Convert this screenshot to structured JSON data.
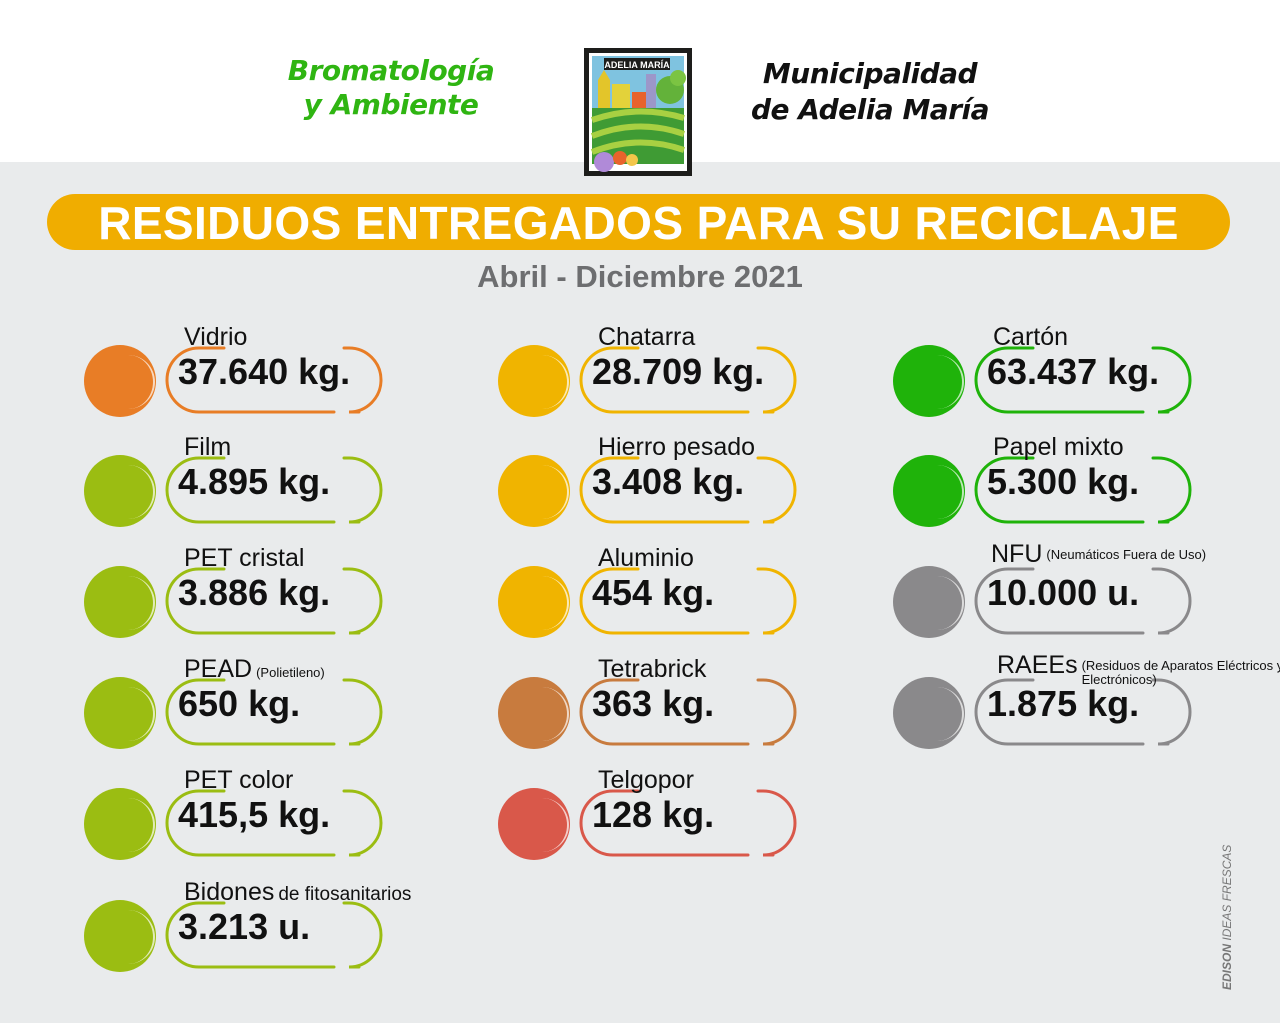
{
  "header": {
    "dept_line1": "Bromatología",
    "dept_line2": "y Ambiente",
    "muni_line1": "Municipalidad",
    "muni_line2": "de Adelia María",
    "logo_text": "ADELIA MARÍA"
  },
  "title": "RESIDUOS ENTREGADOS PARA SU RECICLAJE",
  "period": "Abril - Diciembre 2021",
  "colors": {
    "orange": "#e87d26",
    "lime": "#9bbd12",
    "yellow": "#f0b400",
    "brown": "#c87b3e",
    "red": "#d9584a",
    "green": "#1fb30a",
    "gray": "#8a898b",
    "banner": "#f0ad00",
    "dept_green": "#2fb512"
  },
  "items": [
    {
      "label": "Vidrio",
      "note": "",
      "value": "37.640 kg.",
      "color": "#e87d26"
    },
    {
      "label": "Film",
      "note": "",
      "value": "4.895 kg.",
      "color": "#9bbd12"
    },
    {
      "label": "PET cristal",
      "note": "",
      "value": "3.886 kg.",
      "color": "#9bbd12"
    },
    {
      "label": "PEAD",
      "note": "(Polietileno)",
      "value": "650 kg.",
      "color": "#9bbd12"
    },
    {
      "label": "PET color",
      "note": "",
      "value": "415,5 kg.",
      "color": "#9bbd12"
    },
    {
      "label": "Bidones",
      "note": "de fitosanitarios",
      "value": "3.213 u.",
      "color": "#9bbd12"
    },
    {
      "label": "Chatarra",
      "note": "",
      "value": "28.709 kg.",
      "color": "#f0b400"
    },
    {
      "label": "Hierro pesado",
      "note": "",
      "value": "3.408 kg.",
      "color": "#f0b400"
    },
    {
      "label": "Aluminio",
      "note": "",
      "value": "454 kg.",
      "color": "#f0b400"
    },
    {
      "label": "Tetrabrick",
      "note": "",
      "value": "363 kg.",
      "color": "#c87b3e"
    },
    {
      "label": "Telgopor",
      "note": "",
      "value": "128 kg.",
      "color": "#d9584a"
    },
    {
      "label": "Cartón",
      "note": "",
      "value": "63.437 kg.",
      "color": "#1fb30a"
    },
    {
      "label": "Papel mixto",
      "note": "",
      "value": "5.300 kg.",
      "color": "#1fb30a"
    },
    {
      "label": "NFU",
      "note": "(Neumáticos Fuera de Uso)",
      "value": "10.000 u.",
      "color": "#8a898b"
    },
    {
      "label": "RAEEs",
      "note": "(Residuos de Aparatos Eléctricos y Electrónicos)",
      "value": "1.875 kg.",
      "color": "#8a898b"
    }
  ],
  "credit_bold": "EDISON",
  "credit_rest": "IDEAS FRESCAS"
}
